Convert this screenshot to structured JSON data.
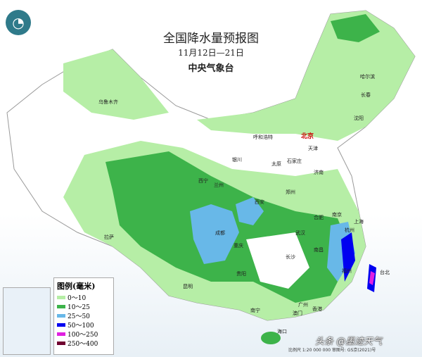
{
  "header": {
    "title": "全国降水量预报图",
    "date_range": "11月12日—21日",
    "issuer": "中央气象台"
  },
  "legend": {
    "title": "图例(毫米)",
    "items": [
      {
        "label": "0～10",
        "color": "#b6eea6"
      },
      {
        "label": "10～25",
        "color": "#3db34a"
      },
      {
        "label": "25～50",
        "color": "#68b8e8"
      },
      {
        "label": "50～100",
        "color": "#0000f0"
      },
      {
        "label": "100～250",
        "color": "#e020e0"
      },
      {
        "label": "250～400",
        "color": "#700030"
      }
    ]
  },
  "cities": [
    {
      "name": "北京",
      "capital": true
    },
    {
      "name": "哈尔滨"
    },
    {
      "name": "长春"
    },
    {
      "name": "沈阳"
    },
    {
      "name": "天津"
    },
    {
      "name": "呼和浩特"
    },
    {
      "name": "银川"
    },
    {
      "name": "太原"
    },
    {
      "name": "石家庄"
    },
    {
      "name": "济南"
    },
    {
      "name": "西宁"
    },
    {
      "name": "兰州"
    },
    {
      "name": "郑州"
    },
    {
      "name": "西安"
    },
    {
      "name": "合肥"
    },
    {
      "name": "南京"
    },
    {
      "name": "上海"
    },
    {
      "name": "杭州"
    },
    {
      "name": "武汉"
    },
    {
      "name": "成都"
    },
    {
      "name": "重庆"
    },
    {
      "name": "拉萨"
    },
    {
      "name": "长沙"
    },
    {
      "name": "南昌"
    },
    {
      "name": "福州"
    },
    {
      "name": "贵阳"
    },
    {
      "name": "昆明"
    },
    {
      "name": "南宁"
    },
    {
      "name": "广州"
    },
    {
      "name": "澳门"
    },
    {
      "name": "香港"
    },
    {
      "name": "海口"
    },
    {
      "name": "台北"
    },
    {
      "name": "乌鲁木齐"
    }
  ],
  "footer": {
    "scale": "比例尺 1:20 000 000  审图号: GS京(2021)号",
    "watermark": "头条 @墨迹天气"
  }
}
